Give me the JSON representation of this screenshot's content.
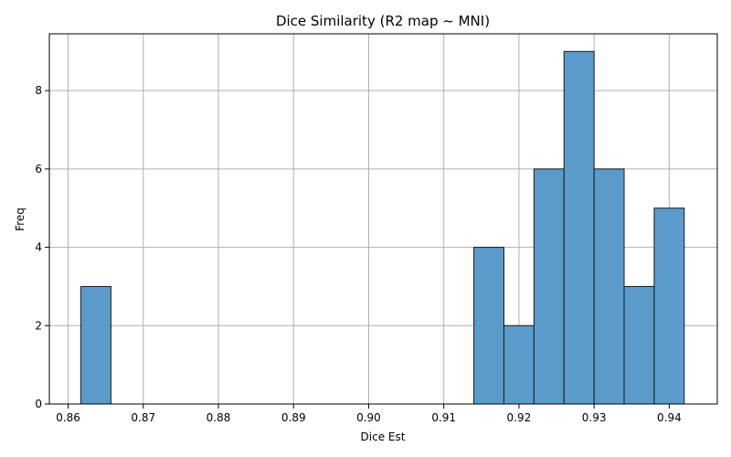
{
  "chart_data": {
    "type": "bar",
    "title": "Dice Similarity (R2 map ~ MNI)",
    "xlabel": "Dice Est",
    "ylabel": "Freq",
    "xlim": [
      0.8575,
      0.9464
    ],
    "ylim": [
      0,
      9.45
    ],
    "x_ticks": [
      "0.86",
      "0.87",
      "0.88",
      "0.89",
      "0.90",
      "0.91",
      "0.92",
      "0.93",
      "0.94"
    ],
    "y_ticks": [
      "0",
      "2",
      "4",
      "6",
      "8"
    ],
    "grid": true,
    "bins": [
      {
        "x0": 0.8617,
        "x1": 0.8657,
        "count": 3
      },
      {
        "x0": 0.914,
        "x1": 0.918,
        "count": 4
      },
      {
        "x0": 0.918,
        "x1": 0.922,
        "count": 2
      },
      {
        "x0": 0.922,
        "x1": 0.926,
        "count": 6
      },
      {
        "x0": 0.926,
        "x1": 0.93,
        "count": 9
      },
      {
        "x0": 0.93,
        "x1": 0.934,
        "count": 6
      },
      {
        "x0": 0.934,
        "x1": 0.938,
        "count": 3
      },
      {
        "x0": 0.938,
        "x1": 0.942,
        "count": 5
      }
    ],
    "colors": {
      "bar_fill": "#5b9bcb",
      "bar_edge": "#1a1a1a",
      "grid": "#b0b0b0",
      "axis": "#000000"
    }
  }
}
